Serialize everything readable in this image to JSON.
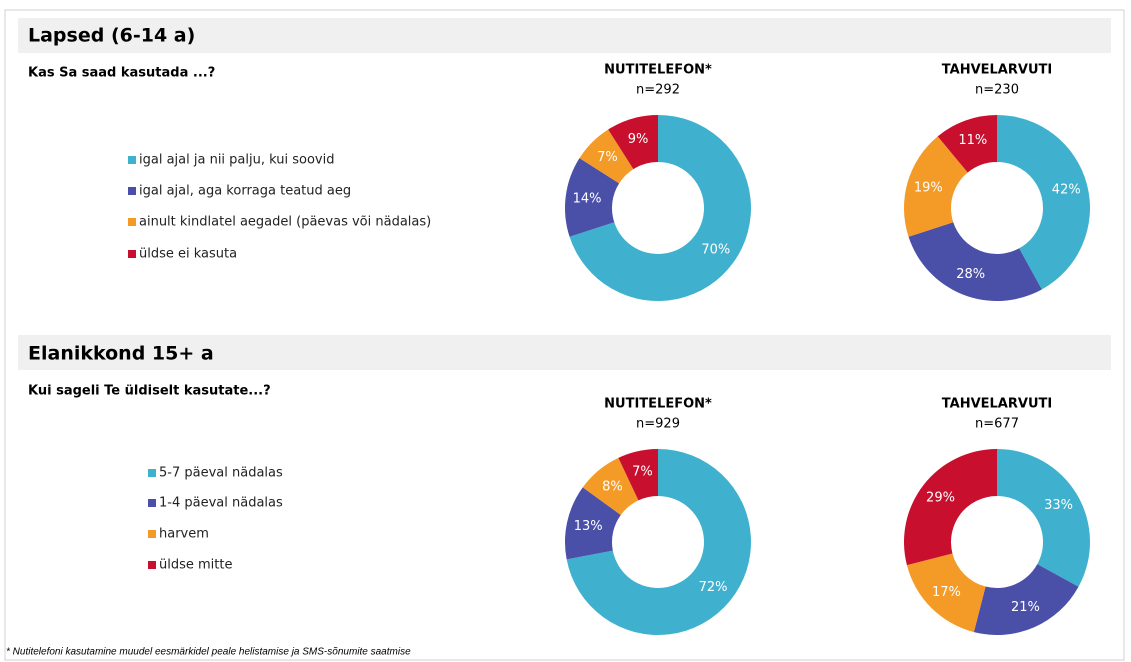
{
  "sections": [
    {
      "title": "Lapsed (6-14 a)",
      "question": "Kas Sa saad kasutada ...?",
      "legend": [
        "igal ajal ja nii palju, kui soovid",
        "igal ajal, aga korraga teatud aeg",
        "ainult kindlatel aegadel (päevas või nädalas)",
        "üldse ei kasuta"
      ]
    },
    {
      "title": "Elanikkond 15+ a",
      "question": "Kui sageli Te üldiselt kasutate...?",
      "legend": [
        "5-7 päeval nädalas",
        "1-4 päeval nädalas",
        "harvem",
        "üldse mitte"
      ]
    }
  ],
  "colors": [
    "#3fb1ce",
    "#4a4fa8",
    "#f39a27",
    "#c8102e"
  ],
  "footnote": "* Nutitelefoni kasutamine muudel eesmärkidel peale helistamise ja SMS-sõnumite saatmise",
  "chart_data": [
    {
      "type": "donut",
      "title": "NUTITELEFON*",
      "subtitle": "n=292",
      "values": [
        70,
        14,
        7,
        9
      ],
      "value_labels": [
        "70%",
        "14%",
        "7%",
        "9%"
      ]
    },
    {
      "type": "donut",
      "title": "TAHVELARVUTI",
      "subtitle": "n=230",
      "values": [
        42,
        28,
        19,
        11
      ],
      "value_labels": [
        "42%",
        "28%",
        "19%",
        "11%"
      ]
    },
    {
      "type": "donut",
      "title": "NUTITELEFON*",
      "subtitle": "n=929",
      "values": [
        72,
        13,
        8,
        7
      ],
      "value_labels": [
        "72%",
        "13%",
        "8%",
        "7%"
      ]
    },
    {
      "type": "donut",
      "title": "TAHVELARVUTI",
      "subtitle": "n=677",
      "values": [
        33,
        21,
        17,
        29
      ],
      "value_labels": [
        "33%",
        "21%",
        "17%",
        "29%"
      ]
    }
  ]
}
